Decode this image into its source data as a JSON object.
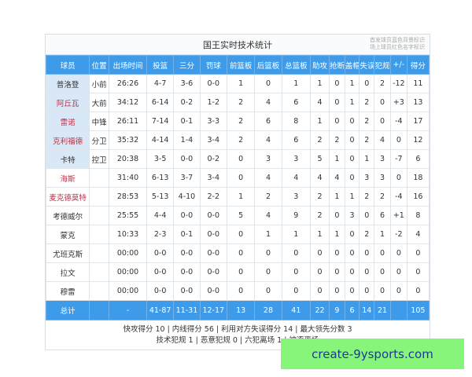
{
  "title": "国王实时技术统计",
  "legend": [
    "首发球员蓝色背景标识",
    "场上球员红色名字标识"
  ],
  "columns": [
    "球员",
    "位置",
    "出场时间",
    "投篮",
    "三分",
    "罚球",
    "前篮板",
    "后篮板",
    "总篮板",
    "助攻",
    "抢断",
    "盖帽",
    "失误",
    "犯规",
    "+/-",
    "得分"
  ],
  "colors": {
    "header": "#3d9be9",
    "starter_bg": "#d9e8f7",
    "on_court_name": "#c0304a",
    "watermark_bg": "#86f57a"
  },
  "players": [
    {
      "starter": true,
      "on_court": false,
      "cells": [
        "普洛登",
        "小前",
        "26:26",
        "4-7",
        "3-6",
        "0-0",
        "1",
        "0",
        "1",
        "1",
        "0",
        "1",
        "0",
        "2",
        "-12",
        "11"
      ]
    },
    {
      "starter": true,
      "on_court": true,
      "cells": [
        "阿丘瓦",
        "大前",
        "34:12",
        "6-14",
        "0-2",
        "1-2",
        "2",
        "4",
        "6",
        "4",
        "0",
        "1",
        "2",
        "0",
        "+3",
        "13"
      ]
    },
    {
      "starter": true,
      "on_court": true,
      "cells": [
        "雷诺",
        "中锋",
        "26:11",
        "7-14",
        "0-1",
        "3-3",
        "2",
        "6",
        "8",
        "1",
        "0",
        "0",
        "2",
        "0",
        "-4",
        "17"
      ]
    },
    {
      "starter": true,
      "on_court": true,
      "cells": [
        "克利福德",
        "分卫",
        "35:32",
        "4-14",
        "1-4",
        "3-4",
        "2",
        "4",
        "6",
        "2",
        "2",
        "0",
        "2",
        "4",
        "0",
        "12"
      ]
    },
    {
      "starter": true,
      "on_court": false,
      "cells": [
        "卡特",
        "控卫",
        "20:38",
        "3-5",
        "0-0",
        "0-2",
        "0",
        "3",
        "3",
        "5",
        "1",
        "0",
        "1",
        "3",
        "-7",
        "6"
      ]
    },
    {
      "starter": false,
      "on_court": true,
      "cells": [
        "海斯",
        "",
        "31:40",
        "6-13",
        "3-7",
        "3-4",
        "0",
        "4",
        "4",
        "4",
        "4",
        "0",
        "3",
        "3",
        "0",
        "18"
      ]
    },
    {
      "starter": false,
      "on_court": true,
      "cells": [
        "麦克德莫特",
        "",
        "28:53",
        "5-13",
        "4-10",
        "2-2",
        "1",
        "2",
        "3",
        "2",
        "1",
        "1",
        "2",
        "2",
        "-4",
        "16"
      ]
    },
    {
      "starter": false,
      "on_court": false,
      "cells": [
        "考德威尔",
        "",
        "25:55",
        "4-4",
        "0-0",
        "0-0",
        "5",
        "4",
        "9",
        "2",
        "0",
        "3",
        "0",
        "6",
        "+1",
        "8"
      ]
    },
    {
      "starter": false,
      "on_court": false,
      "cells": [
        "蒙克",
        "",
        "10:33",
        "2-3",
        "0-1",
        "0-0",
        "0",
        "1",
        "1",
        "1",
        "1",
        "0",
        "2",
        "1",
        "-2",
        "4"
      ]
    },
    {
      "starter": false,
      "on_court": false,
      "cells": [
        "尤班克斯",
        "",
        "00:00",
        "0-0",
        "0-0",
        "0-0",
        "0",
        "0",
        "0",
        "0",
        "0",
        "0",
        "0",
        "0",
        "0",
        "0"
      ]
    },
    {
      "starter": false,
      "on_court": false,
      "cells": [
        "拉文",
        "",
        "00:00",
        "0-0",
        "0-0",
        "0-0",
        "0",
        "0",
        "0",
        "0",
        "0",
        "0",
        "0",
        "0",
        "0",
        "0"
      ]
    },
    {
      "starter": false,
      "on_court": false,
      "cells": [
        "穆雷",
        "",
        "00:00",
        "0-0",
        "0-0",
        "0-0",
        "0",
        "0",
        "0",
        "0",
        "0",
        "0",
        "0",
        "0",
        "0",
        "0"
      ]
    }
  ],
  "total": [
    "总计",
    "",
    "-",
    "41-87",
    "11-31",
    "12-17",
    "13",
    "28",
    "41",
    "22",
    "9",
    "6",
    "14",
    "21",
    "",
    "105"
  ],
  "footer": [
    "快攻得分 10 | 内线得分 56 | 利用对方失误得分 14 | 最大领先分数 3",
    "技术犯规 1 | 恶意犯规 0 | 六犯离场 1 | 被逐离场"
  ],
  "watermark": "create-9ysports.com"
}
